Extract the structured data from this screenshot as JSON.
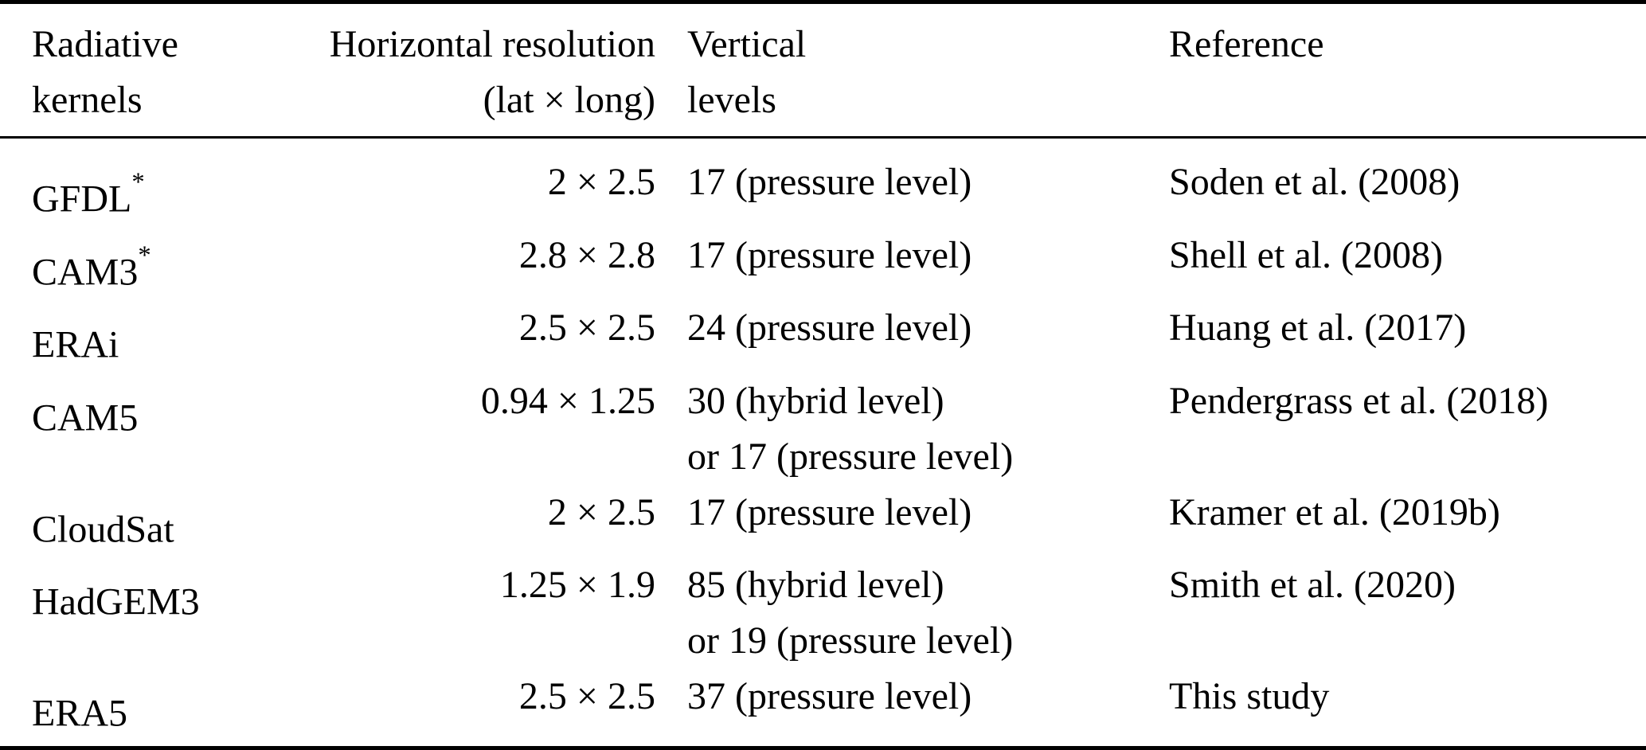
{
  "table": {
    "title": "radiative-kernels-comparison",
    "headers": [
      {
        "line1": "Radiative",
        "line2": "kernels"
      },
      {
        "line1": "Horizontal resolution",
        "line2": "(lat × long)"
      },
      {
        "line1": "Vertical",
        "line2": "levels"
      },
      {
        "line1": "Reference",
        "line2": ""
      }
    ],
    "rows": [
      {
        "kernel": "GFDL",
        "sup": "*",
        "resolution": "2 × 2.5",
        "levels": [
          "17 (pressure level)"
        ],
        "reference": "Soden et al. (2008)"
      },
      {
        "kernel": "CAM3",
        "sup": "*",
        "resolution": "2.8 × 2.8",
        "levels": [
          "17 (pressure level)"
        ],
        "reference": "Shell et al. (2008)"
      },
      {
        "kernel": "ERAi",
        "resolution": "2.5 × 2.5",
        "levels": [
          "24 (pressure level)"
        ],
        "reference": "Huang et al. (2017)"
      },
      {
        "kernel": "CAM5",
        "resolution": "0.94 × 1.25",
        "levels": [
          "30 (hybrid level)",
          "or 17 (pressure level)"
        ],
        "reference": "Pendergrass et al. (2018)"
      },
      {
        "kernel": "CloudSat",
        "resolution": "2 × 2.5",
        "levels": [
          "17 (pressure level)"
        ],
        "reference": "Kramer et al. (2019b)"
      },
      {
        "kernel": "HadGEM3",
        "resolution": "1.25 × 1.9",
        "levels": [
          "85 (hybrid level)",
          "or 19 (pressure level)"
        ],
        "reference": "Smith et al. (2020)"
      },
      {
        "kernel": "ERA5",
        "resolution": "2.5 × 2.5",
        "levels": [
          "37 (pressure level)"
        ],
        "reference": "This study"
      }
    ],
    "text_color": "#000000",
    "background_color": "#ffffff"
  }
}
